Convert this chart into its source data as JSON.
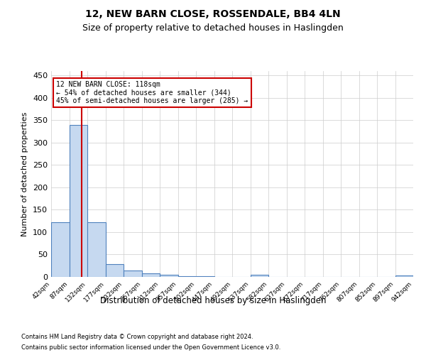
{
  "title": "12, NEW BARN CLOSE, ROSSENDALE, BB4 4LN",
  "subtitle": "Size of property relative to detached houses in Haslingden",
  "xlabel_dist": "Distribution of detached houses by size in Haslingden",
  "ylabel": "Number of detached properties",
  "footnote1": "Contains HM Land Registry data © Crown copyright and database right 2024.",
  "footnote2": "Contains public sector information licensed under the Open Government Licence v3.0.",
  "annotation_line1": "12 NEW BARN CLOSE: 118sqm",
  "annotation_line2": "← 54% of detached houses are smaller (344)",
  "annotation_line3": "45% of semi-detached houses are larger (285) →",
  "property_size": 118,
  "bar_edges": [
    42,
    87,
    132,
    177,
    222,
    267,
    312,
    357,
    402,
    447,
    492,
    537,
    582,
    627,
    672,
    717,
    762,
    807,
    852,
    897,
    942
  ],
  "bar_heights": [
    122,
    340,
    122,
    29,
    15,
    8,
    5,
    2,
    2,
    0,
    0,
    4,
    0,
    0,
    0,
    0,
    0,
    0,
    0,
    3
  ],
  "bar_color": "#c6d9f0",
  "bar_edge_color": "#4f81bd",
  "red_line_color": "#cc0000",
  "annotation_box_color": "#cc0000",
  "background_color": "#ffffff",
  "grid_color": "#cccccc",
  "ylim": [
    0,
    460
  ],
  "xlim": [
    42,
    942
  ]
}
